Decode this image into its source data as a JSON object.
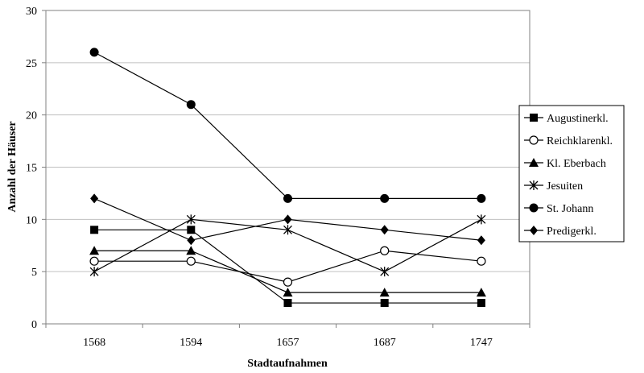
{
  "chart_data": {
    "type": "line",
    "title": "",
    "xlabel": "Stadtaufnahmen",
    "ylabel": "Anzahl der Häuser",
    "categories": [
      "1568",
      "1594",
      "1657",
      "1687",
      "1747"
    ],
    "ylim": [
      0,
      30
    ],
    "yticks": [
      0,
      5,
      10,
      15,
      20,
      25,
      30
    ],
    "grid": "horizontal",
    "legend_position": "right",
    "series": [
      {
        "name": "Augustinerkl.",
        "marker": "square-filled",
        "values": [
          9,
          9,
          2,
          2,
          2
        ]
      },
      {
        "name": "Reichklarenkl.",
        "marker": "circle-open",
        "values": [
          6,
          6,
          4,
          7,
          6
        ]
      },
      {
        "name": "Kl.  Eberbach",
        "marker": "triangle-filled",
        "values": [
          7,
          7,
          3,
          3,
          3
        ]
      },
      {
        "name": "Jesuiten",
        "marker": "asterisk",
        "values": [
          5,
          10,
          9,
          5,
          10
        ]
      },
      {
        "name": "St. Johann",
        "marker": "circle-filled",
        "values": [
          26,
          21,
          12,
          12,
          12
        ]
      },
      {
        "name": "Predigerkl.",
        "marker": "diamond-filled",
        "values": [
          12,
          8,
          10,
          9,
          8
        ]
      }
    ]
  }
}
